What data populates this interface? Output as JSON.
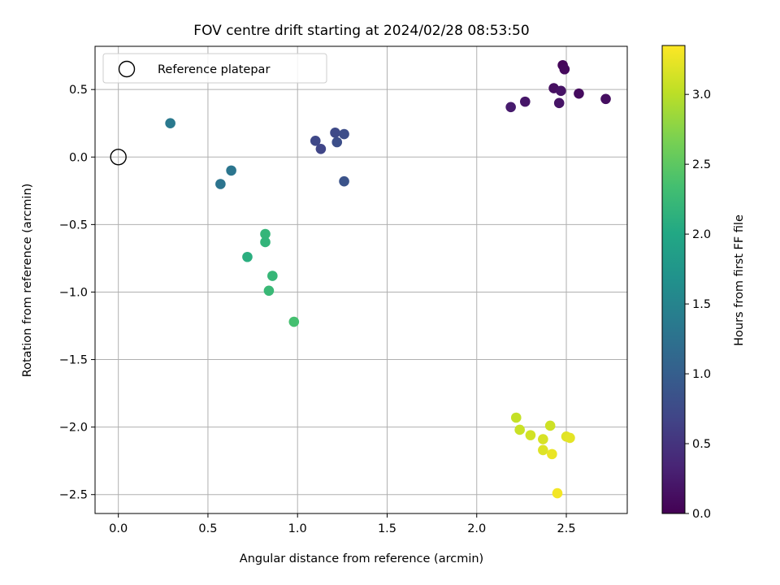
{
  "chart_data": {
    "type": "scatter",
    "title": "FOV centre drift starting at 2024/02/28 08:53:50",
    "xlabel": "Angular distance from reference (arcmin)",
    "ylabel": "Rotation from reference (arcmin)",
    "xlim": [
      -0.13,
      2.84
    ],
    "ylim": [
      -2.64,
      0.82
    ],
    "xticks": [
      0.0,
      0.5,
      1.0,
      1.5,
      2.0,
      2.5
    ],
    "xtick_labels": [
      "0.0",
      "0.5",
      "1.0",
      "1.5",
      "2.0",
      "2.5"
    ],
    "yticks": [
      0.5,
      0.0,
      -0.5,
      -1.0,
      -1.5,
      -2.0,
      -2.5
    ],
    "ytick_labels": [
      "0.5",
      "0.0",
      "−0.5",
      "−1.0",
      "−1.5",
      "−2.0",
      "−2.5"
    ],
    "grid": true,
    "legend": {
      "position": "top-left",
      "entries": [
        {
          "label": "Reference platepar",
          "marker": "open-circle"
        }
      ]
    },
    "reference_point": {
      "x": 0.0,
      "y": 0.0
    },
    "colorbar": {
      "label": "Hours from first FF file",
      "range": [
        0.0,
        3.35
      ],
      "colormap": "viridis",
      "ticks": [
        0.0,
        0.5,
        1.0,
        1.5,
        2.0,
        2.5,
        3.0
      ],
      "tick_labels": [
        "0.0",
        "0.5",
        "1.0",
        "1.5",
        "2.0",
        "2.5",
        "3.0"
      ]
    },
    "points": [
      {
        "x": 2.48,
        "y": 0.68,
        "t": 0.05
      },
      {
        "x": 2.49,
        "y": 0.65,
        "t": 0.08
      },
      {
        "x": 2.43,
        "y": 0.51,
        "t": 0.13
      },
      {
        "x": 2.47,
        "y": 0.49,
        "t": 0.17
      },
      {
        "x": 2.57,
        "y": 0.47,
        "t": 0.1
      },
      {
        "x": 2.72,
        "y": 0.43,
        "t": 0.12
      },
      {
        "x": 2.27,
        "y": 0.41,
        "t": 0.2
      },
      {
        "x": 2.46,
        "y": 0.4,
        "t": 0.18
      },
      {
        "x": 2.19,
        "y": 0.37,
        "t": 0.25
      },
      {
        "x": 1.21,
        "y": 0.18,
        "t": 0.75
      },
      {
        "x": 1.26,
        "y": 0.17,
        "t": 0.78
      },
      {
        "x": 1.1,
        "y": 0.12,
        "t": 0.72
      },
      {
        "x": 1.22,
        "y": 0.11,
        "t": 0.8
      },
      {
        "x": 1.13,
        "y": 0.06,
        "t": 0.7
      },
      {
        "x": 1.26,
        "y": -0.18,
        "t": 0.85
      },
      {
        "x": 0.29,
        "y": 0.25,
        "t": 1.35
      },
      {
        "x": 0.63,
        "y": -0.1,
        "t": 1.3
      },
      {
        "x": 0.57,
        "y": -0.2,
        "t": 1.28
      },
      {
        "x": 0.82,
        "y": -0.57,
        "t": 2.2
      },
      {
        "x": 0.82,
        "y": -0.63,
        "t": 2.18
      },
      {
        "x": 0.72,
        "y": -0.74,
        "t": 2.1
      },
      {
        "x": 0.86,
        "y": -0.88,
        "t": 2.22
      },
      {
        "x": 0.84,
        "y": -0.99,
        "t": 2.25
      },
      {
        "x": 0.98,
        "y": -1.22,
        "t": 2.35
      },
      {
        "x": 2.22,
        "y": -1.93,
        "t": 3.05
      },
      {
        "x": 2.41,
        "y": -1.99,
        "t": 3.1
      },
      {
        "x": 2.24,
        "y": -2.02,
        "t": 3.08
      },
      {
        "x": 2.3,
        "y": -2.06,
        "t": 3.12
      },
      {
        "x": 2.5,
        "y": -2.07,
        "t": 3.2
      },
      {
        "x": 2.52,
        "y": -2.08,
        "t": 3.22
      },
      {
        "x": 2.37,
        "y": -2.09,
        "t": 3.15
      },
      {
        "x": 2.37,
        "y": -2.17,
        "t": 3.18
      },
      {
        "x": 2.42,
        "y": -2.2,
        "t": 3.25
      },
      {
        "x": 2.45,
        "y": -2.49,
        "t": 3.3
      }
    ]
  }
}
